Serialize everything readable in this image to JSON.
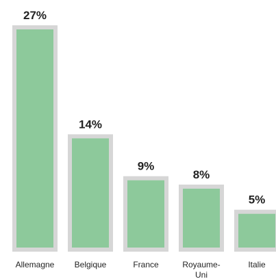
{
  "chart_data": {
    "type": "bar",
    "categories": [
      "Allemagne",
      "Belgique",
      "France",
      "Royaume-Uni",
      "Italie"
    ],
    "category_lines": [
      [
        "Allemagne"
      ],
      [
        "Belgique"
      ],
      [
        "France"
      ],
      [
        "Royaume-",
        "Uni"
      ],
      [
        "Italie"
      ]
    ],
    "values": [
      27,
      14,
      9,
      8,
      5
    ],
    "value_labels": [
      "27%",
      "14%",
      "9%",
      "8%",
      "5%"
    ],
    "unit": "%",
    "ylim": [
      0,
      27
    ],
    "grid": false,
    "legend": "none",
    "colors": {
      "bar_fill": "#8dc99b",
      "bar_border": "#d6d6d6",
      "text": "#222222"
    }
  }
}
